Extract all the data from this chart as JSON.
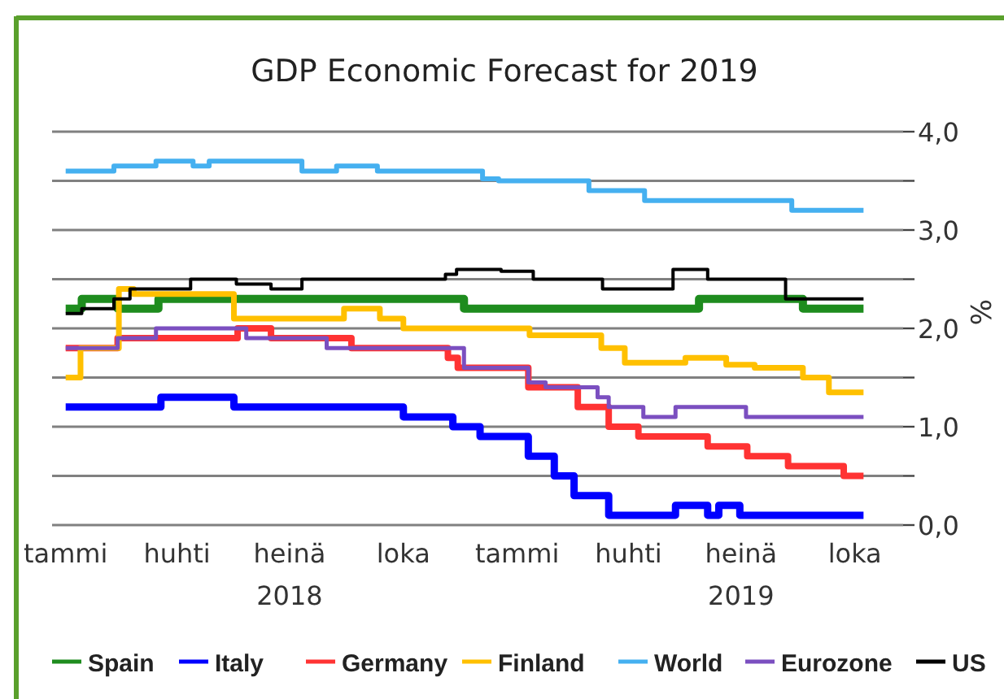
{
  "chart_data": {
    "type": "step",
    "title": "GDP Economic Forecast for 2019",
    "ylabel": "%",
    "xlim": [
      "2017-12-21",
      "2019-11-09"
    ],
    "ylim": [
      0,
      4
    ],
    "xticks": [
      {
        "value": "2018-01-01",
        "label": "tammi"
      },
      {
        "value": "2018-04-01",
        "label": "huhti"
      },
      {
        "value": "2018-07-01",
        "label": "heinä\n2018"
      },
      {
        "value": "2018-10-01",
        "label": "loka"
      },
      {
        "value": "2019-01-01",
        "label": "tammi"
      },
      {
        "value": "2019-04-01",
        "label": "huhti"
      },
      {
        "value": "2019-07-01",
        "label": "heinä\n2019"
      },
      {
        "value": "2019-10-01",
        "label": "loka"
      }
    ],
    "yticks": [
      {
        "value": 0,
        "label": "0,0"
      },
      {
        "value": 0.5,
        "label": null
      },
      {
        "value": 1,
        "label": "1,0"
      },
      {
        "value": 1.5,
        "label": null
      },
      {
        "value": 2,
        "label": "2,0"
      },
      {
        "value": 2.5,
        "label": null
      },
      {
        "value": 3,
        "label": "3,0"
      },
      {
        "value": 3.5,
        "label": null
      },
      {
        "value": 4,
        "label": "4,0"
      }
    ],
    "grid": "y",
    "legend": "bottom",
    "series": [
      {
        "name": "Spain",
        "color": "#1e8c1e",
        "x": [
          "2018-01-01",
          "2018-01-14",
          "2018-02-12",
          "2018-03-17",
          "2018-11-19",
          "2019-05-28",
          "2019-08-20",
          "2019-10-08"
        ],
        "values": [
          2.2,
          2.3,
          2.2,
          2.3,
          2.2,
          2.3,
          2.2,
          2.2
        ]
      },
      {
        "name": "Italy",
        "color": "#0000ff",
        "x": [
          "2018-01-01",
          "2018-03-19",
          "2018-05-17",
          "2018-10-01",
          "2018-11-10",
          "2018-12-02",
          "2019-01-10",
          "2019-01-31",
          "2019-02-16",
          "2019-03-16",
          "2019-05-09",
          "2019-06-04",
          "2019-06-13",
          "2019-06-30",
          "2019-10-08"
        ],
        "values": [
          1.2,
          1.3,
          1.2,
          1.1,
          1.0,
          0.9,
          0.7,
          0.5,
          0.3,
          0.1,
          0.2,
          0.1,
          0.2,
          0.1,
          0.1
        ]
      },
      {
        "name": "Germany",
        "color": "#ff3333",
        "x": [
          "2018-01-01",
          "2018-02-12",
          "2018-05-20",
          "2018-06-16",
          "2018-08-20",
          "2018-11-06",
          "2018-11-14",
          "2019-01-10",
          "2019-02-19",
          "2019-03-16",
          "2019-04-09",
          "2019-06-04",
          "2019-07-06",
          "2019-08-08",
          "2019-09-22",
          "2019-10-08"
        ],
        "values": [
          1.8,
          1.9,
          2.0,
          1.9,
          1.8,
          1.7,
          1.6,
          1.4,
          1.2,
          1.0,
          0.9,
          0.8,
          0.7,
          0.6,
          0.5,
          0.5
        ]
      },
      {
        "name": "Finland",
        "color": "#ffc000",
        "x": [
          "2018-01-01",
          "2018-01-13",
          "2018-02-13",
          "2018-02-25",
          "2018-05-17",
          "2018-08-14",
          "2018-09-12",
          "2018-10-01",
          "2019-01-11",
          "2019-03-10",
          "2019-03-29",
          "2019-05-17",
          "2019-06-19",
          "2019-07-12",
          "2019-08-20",
          "2019-09-10",
          "2019-10-08"
        ],
        "values": [
          1.5,
          1.8,
          2.4,
          2.35,
          2.1,
          2.2,
          2.1,
          2.0,
          1.93,
          1.8,
          1.65,
          1.7,
          1.63,
          1.6,
          1.5,
          1.35,
          1.35
        ]
      },
      {
        "name": "World",
        "color": "#45b0f0",
        "x": [
          "2018-01-01",
          "2018-02-09",
          "2018-03-15",
          "2018-04-14",
          "2018-04-27",
          "2018-07-11",
          "2018-08-08",
          "2018-09-10",
          "2018-12-04",
          "2018-12-17",
          "2019-02-28",
          "2019-04-14",
          "2019-08-11",
          "2019-10-08"
        ],
        "values": [
          3.6,
          3.65,
          3.7,
          3.65,
          3.7,
          3.6,
          3.65,
          3.6,
          3.52,
          3.5,
          3.4,
          3.3,
          3.2,
          3.2
        ]
      },
      {
        "name": "Eurozone",
        "color": "#7b4fc0",
        "x": [
          "2018-01-01",
          "2018-02-12",
          "2018-03-15",
          "2018-05-27",
          "2018-07-31",
          "2018-11-19",
          "2019-01-10",
          "2019-01-24",
          "2019-03-07",
          "2019-03-16",
          "2019-04-13",
          "2019-05-09",
          "2019-07-05",
          "2019-10-08"
        ],
        "values": [
          1.8,
          1.9,
          2.0,
          1.9,
          1.8,
          1.6,
          1.45,
          1.4,
          1.3,
          1.2,
          1.1,
          1.2,
          1.1,
          1.1
        ]
      },
      {
        "name": "US",
        "color": "#000000",
        "x": [
          "2018-01-01",
          "2018-01-14",
          "2018-02-09",
          "2018-02-22",
          "2018-04-12",
          "2018-05-19",
          "2018-06-16",
          "2018-07-11",
          "2018-11-04",
          "2018-11-13",
          "2018-12-19",
          "2019-01-14",
          "2019-03-11",
          "2019-05-07",
          "2019-06-04",
          "2019-08-06",
          "2019-10-08"
        ],
        "values": [
          2.15,
          2.2,
          2.3,
          2.4,
          2.5,
          2.45,
          2.4,
          2.5,
          2.55,
          2.6,
          2.58,
          2.5,
          2.4,
          2.6,
          2.5,
          2.3,
          2.3
        ]
      }
    ]
  }
}
